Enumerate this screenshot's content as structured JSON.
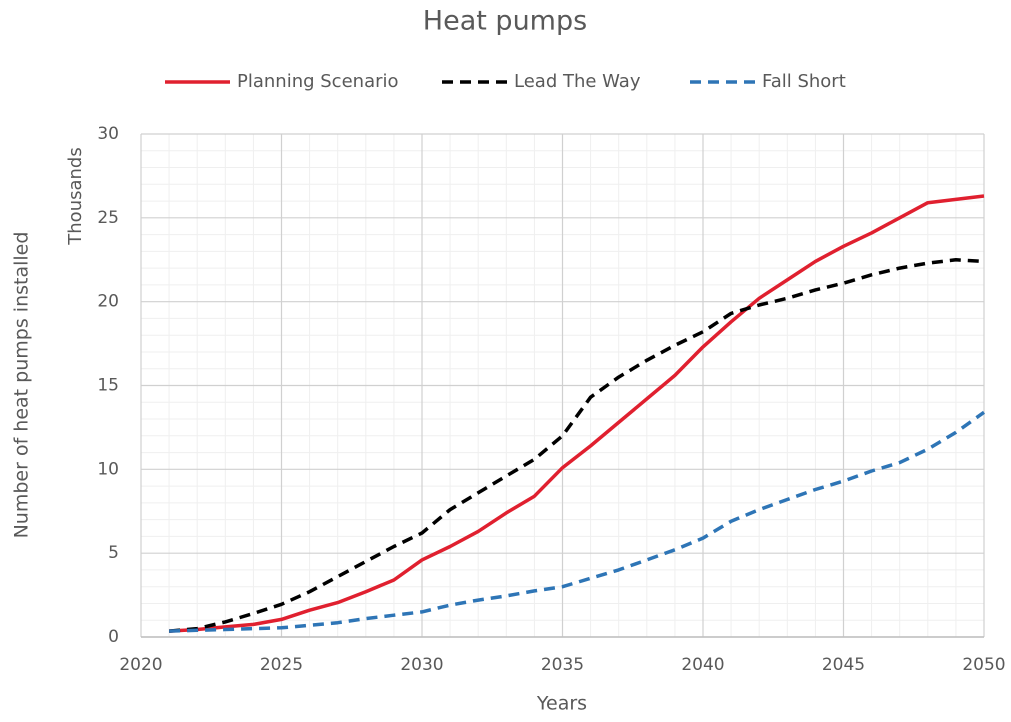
{
  "chart_data": {
    "type": "line",
    "title": "Heat pumps",
    "xlabel": "Years",
    "ylabel": "Number of heat pumps installed",
    "yunit_label": "Thousands",
    "x": [
      2021,
      2022,
      2023,
      2024,
      2025,
      2026,
      2027,
      2028,
      2029,
      2030,
      2031,
      2032,
      2033,
      2034,
      2035,
      2036,
      2037,
      2038,
      2039,
      2040,
      2041,
      2042,
      2043,
      2044,
      2045,
      2046,
      2047,
      2048,
      2049,
      2050
    ],
    "series": [
      {
        "name": "Planning Scenario",
        "color": "#e0202f",
        "style": "solid",
        "values": [
          0.35,
          0.45,
          0.6,
          0.75,
          1.05,
          1.6,
          2.05,
          2.7,
          3.4,
          4.6,
          5.4,
          6.3,
          7.4,
          8.4,
          10.1,
          11.4,
          12.8,
          14.2,
          15.6,
          17.3,
          18.8,
          20.2,
          21.3,
          22.4,
          23.3,
          24.1,
          25.0,
          25.9,
          26.1,
          26.3
        ]
      },
      {
        "name": "Lead The Way",
        "color": "#000000",
        "style": "dashed",
        "values": [
          0.35,
          0.5,
          0.9,
          1.4,
          1.95,
          2.7,
          3.6,
          4.5,
          5.4,
          6.2,
          7.6,
          8.6,
          9.6,
          10.6,
          12.0,
          14.3,
          15.5,
          16.5,
          17.4,
          18.2,
          19.3,
          19.8,
          20.2,
          20.7,
          21.1,
          21.6,
          22.0,
          22.3,
          22.5,
          22.4
        ]
      },
      {
        "name": "Fall Short",
        "color": "#2e75b6",
        "style": "dashed",
        "values": [
          0.35,
          0.4,
          0.45,
          0.5,
          0.55,
          0.7,
          0.85,
          1.1,
          1.3,
          1.5,
          1.9,
          2.2,
          2.45,
          2.75,
          3.0,
          3.5,
          4.0,
          4.6,
          5.2,
          5.9,
          6.9,
          7.6,
          8.2,
          8.8,
          9.3,
          9.9,
          10.4,
          11.2,
          12.2,
          13.4
        ]
      }
    ],
    "xlim": [
      2020,
      2050
    ],
    "xticks": [
      2020,
      2025,
      2030,
      2035,
      2040,
      2045,
      2050
    ],
    "ylim": [
      0,
      30
    ],
    "yticks": [
      0,
      5,
      10,
      15,
      20,
      25,
      30
    ],
    "xminorticks": [
      2021,
      2022,
      2023,
      2024,
      2026,
      2027,
      2028,
      2029,
      2031,
      2032,
      2033,
      2034,
      2036,
      2037,
      2038,
      2039,
      2041,
      2042,
      2043,
      2044,
      2046,
      2047,
      2048,
      2049
    ],
    "yminorticks": [
      1,
      2,
      3,
      4,
      6,
      7,
      8,
      9,
      11,
      12,
      13,
      14,
      16,
      17,
      18,
      19,
      21,
      22,
      23,
      24,
      26,
      27,
      28,
      29
    ],
    "grid": true,
    "legend": "top"
  }
}
